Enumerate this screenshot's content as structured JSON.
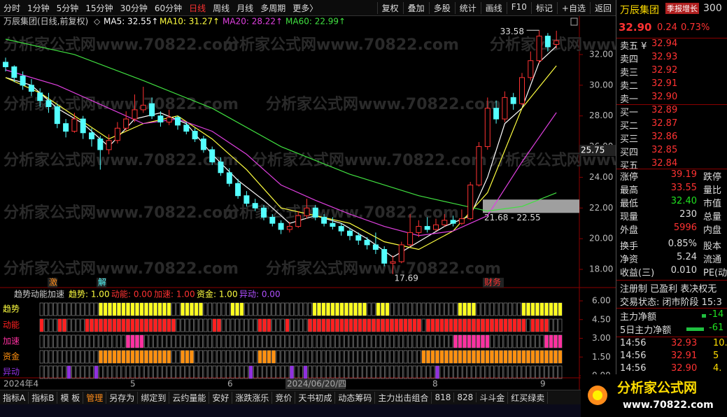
{
  "toolbar": {
    "periods": [
      "分时",
      "1分钟",
      "5分钟",
      "15分钟",
      "30分钟",
      "60分钟",
      "日线",
      "周线",
      "月线",
      "多周期",
      "更多〉"
    ],
    "buttons": [
      "复权",
      "叠加",
      "多股",
      "统计",
      "画线",
      "F10",
      "标记",
      "+自选",
      "返回"
    ]
  },
  "chart": {
    "title": "万辰集团(日线,前复权)",
    "title_mark": "◇",
    "ma": [
      {
        "label": "MA5: 32.55↑",
        "color": "#ffffff",
        "points": [
          [
            0,
            30.5
          ],
          [
            3,
            30.0
          ],
          [
            6,
            28.5
          ],
          [
            9,
            27.5
          ],
          [
            12,
            26.0
          ],
          [
            15,
            27.8
          ],
          [
            18,
            28.2
          ],
          [
            21,
            27.5
          ],
          [
            24,
            25.5
          ],
          [
            27,
            23.8
          ],
          [
            30,
            22.5
          ],
          [
            33,
            21.0
          ],
          [
            36,
            21.5
          ],
          [
            39,
            21.0
          ],
          [
            42,
            20.0
          ],
          [
            45,
            18.8
          ],
          [
            48,
            19.8
          ],
          [
            51,
            20.8
          ],
          [
            54,
            21.5
          ],
          [
            56,
            24.0
          ],
          [
            58,
            27.5
          ],
          [
            60,
            28.5
          ],
          [
            62,
            31.5
          ],
          [
            64,
            32.55
          ]
        ]
      },
      {
        "label": "MA10: 31.27↑",
        "color": "#ffff40",
        "points": [
          [
            0,
            30.5
          ],
          [
            4,
            29.5
          ],
          [
            8,
            28.0
          ],
          [
            12,
            26.5
          ],
          [
            16,
            27.5
          ],
          [
            20,
            28.0
          ],
          [
            24,
            26.5
          ],
          [
            28,
            24.5
          ],
          [
            32,
            22.0
          ],
          [
            36,
            21.5
          ],
          [
            40,
            21.0
          ],
          [
            44,
            19.8
          ],
          [
            48,
            19.3
          ],
          [
            52,
            20.5
          ],
          [
            56,
            23.0
          ],
          [
            60,
            28.5
          ],
          [
            64,
            31.27
          ]
        ]
      },
      {
        "label": "MA20: 28.22↑",
        "color": "#e040e0",
        "points": [
          [
            0,
            31.0
          ],
          [
            6,
            30.0
          ],
          [
            12,
            28.5
          ],
          [
            16,
            27.5
          ],
          [
            20,
            27.8
          ],
          [
            24,
            27.0
          ],
          [
            28,
            25.5
          ],
          [
            32,
            23.5
          ],
          [
            36,
            22.5
          ],
          [
            40,
            21.6
          ],
          [
            44,
            20.8
          ],
          [
            48,
            20.2
          ],
          [
            52,
            20.5
          ],
          [
            56,
            21.5
          ],
          [
            60,
            25.0
          ],
          [
            64,
            28.22
          ]
        ]
      },
      {
        "label": "MA60: 22.99↑",
        "color": "#40e040",
        "points": [
          [
            0,
            33.0
          ],
          [
            8,
            32.0
          ],
          [
            16,
            30.3
          ],
          [
            24,
            28.5
          ],
          [
            32,
            26.0
          ],
          [
            40,
            24.2
          ],
          [
            48,
            22.8
          ],
          [
            52,
            22.3
          ],
          [
            56,
            21.8
          ],
          [
            60,
            22.1
          ],
          [
            64,
            22.99
          ]
        ]
      }
    ],
    "ylim": [
      16.86,
      33.73
    ],
    "yticks": [
      {
        "value": 32,
        "label": "32.00"
      },
      {
        "value": 30,
        "label": "30.00"
      },
      {
        "value": 28,
        "label": "28.00"
      },
      {
        "value": 26,
        "label": "26.00"
      },
      {
        "value": 24,
        "label": "24.00"
      },
      {
        "value": 22,
        "label": "22.00"
      },
      {
        "value": 20,
        "label": "20.00"
      },
      {
        "value": 18,
        "label": "18.00"
      }
    ],
    "cursor_price": {
      "value": 25.75,
      "label": "25.75"
    },
    "high_label": {
      "value": 33.58,
      "label": "33.58"
    },
    "low_label": {
      "value": 17.69,
      "label": "17.69"
    },
    "range_box": {
      "values": [
        21.68,
        22.55
      ],
      "label": "21.68 - 22.55"
    },
    "markers": [
      "激",
      "解",
      "财务"
    ],
    "watermark": "分析家公式网www.70822.com",
    "ohlc": [
      [
        31.5,
        31.8,
        30.9,
        31.2
      ],
      [
        31.2,
        31.3,
        30.2,
        30.5
      ],
      [
        30.6,
        30.9,
        29.7,
        30.0
      ],
      [
        30.0,
        30.4,
        29.3,
        29.6
      ],
      [
        29.5,
        29.8,
        28.6,
        29.0
      ],
      [
        29.0,
        29.5,
        28.2,
        28.6
      ],
      [
        28.6,
        28.8,
        27.2,
        27.5
      ],
      [
        27.5,
        27.8,
        26.6,
        27.0
      ],
      [
        27.0,
        28.2,
        26.9,
        27.8
      ],
      [
        27.8,
        28.0,
        26.5,
        26.9
      ],
      [
        26.9,
        27.2,
        26.0,
        26.5
      ],
      [
        26.5,
        26.7,
        24.5,
        25.8
      ],
      [
        25.8,
        26.8,
        25.5,
        26.4
      ],
      [
        26.4,
        27.6,
        26.2,
        27.2
      ],
      [
        27.2,
        28.3,
        27.0,
        27.8
      ],
      [
        27.8,
        29.4,
        27.6,
        28.4
      ],
      [
        28.4,
        29.9,
        28.2,
        28.7
      ],
      [
        28.8,
        29.2,
        27.8,
        28.0
      ],
      [
        28.0,
        28.3,
        27.3,
        27.6
      ],
      [
        27.6,
        28.4,
        27.4,
        27.9
      ],
      [
        27.9,
        28.0,
        27.1,
        27.4
      ],
      [
        27.4,
        27.6,
        26.8,
        27.0
      ],
      [
        27.0,
        27.2,
        26.3,
        26.5
      ],
      [
        26.5,
        26.7,
        25.6,
        25.8
      ],
      [
        25.8,
        26.0,
        24.8,
        25.0
      ],
      [
        25.0,
        25.3,
        24.1,
        24.3
      ],
      [
        24.3,
        24.6,
        23.4,
        23.6
      ],
      [
        23.6,
        23.9,
        22.6,
        22.8
      ],
      [
        22.8,
        23.1,
        22.1,
        22.3
      ],
      [
        22.3,
        22.6,
        21.8,
        22.0
      ],
      [
        22.0,
        22.2,
        21.2,
        21.4
      ],
      [
        21.4,
        21.6,
        20.8,
        21.0
      ],
      [
        21.0,
        21.2,
        20.3,
        20.6
      ],
      [
        20.6,
        21.1,
        20.4,
        20.8
      ],
      [
        20.8,
        21.8,
        20.7,
        21.5
      ],
      [
        21.5,
        22.6,
        21.3,
        22.0
      ],
      [
        22.0,
        22.2,
        21.2,
        21.4
      ],
      [
        21.4,
        21.6,
        20.8,
        21.0
      ],
      [
        21.0,
        21.4,
        20.6,
        20.8
      ],
      [
        20.8,
        21.0,
        20.2,
        20.5
      ],
      [
        20.5,
        20.7,
        19.9,
        20.2
      ],
      [
        20.2,
        20.4,
        19.6,
        19.9
      ],
      [
        19.9,
        20.1,
        19.3,
        19.6
      ],
      [
        19.6,
        20.4,
        19.0,
        19.3
      ],
      [
        19.3,
        19.5,
        18.2,
        18.4
      ],
      [
        18.4,
        18.9,
        17.69,
        18.5
      ],
      [
        18.5,
        19.8,
        18.4,
        19.6
      ],
      [
        19.6,
        21.6,
        19.5,
        20.4
      ],
      [
        20.4,
        21.2,
        20.1,
        20.8
      ],
      [
        20.8,
        21.4,
        20.4,
        20.6
      ],
      [
        20.6,
        21.3,
        20.5,
        20.9
      ],
      [
        20.9,
        21.6,
        20.8,
        21.2
      ],
      [
        21.2,
        21.5,
        20.8,
        21.0
      ],
      [
        21.0,
        21.9,
        20.9,
        21.3
      ],
      [
        21.3,
        23.7,
        21.2,
        23.5
      ],
      [
        23.5,
        26.3,
        23.4,
        26.0
      ],
      [
        26.0,
        29.2,
        25.8,
        28.5
      ],
      [
        28.5,
        29.0,
        27.5,
        27.8
      ],
      [
        27.8,
        29.6,
        27.6,
        29.2
      ],
      [
        29.2,
        29.5,
        28.4,
        28.8
      ],
      [
        28.8,
        30.8,
        28.7,
        30.5
      ],
      [
        30.5,
        32.2,
        30.3,
        31.6
      ],
      [
        31.6,
        33.58,
        31.4,
        33.2
      ],
      [
        33.2,
        33.4,
        32.2,
        32.5
      ],
      [
        32.66,
        33.55,
        32.4,
        32.9
      ]
    ]
  },
  "indicator": {
    "title": "趋势动能加速",
    "readouts": [
      {
        "label": "趋势: 1.00",
        "color": "#ffff40"
      },
      {
        "label": "动能: 0.00",
        "color": "#ff3232"
      },
      {
        "label": "加速: 1.00",
        "color": "#ff3232"
      },
      {
        "label": "资金: 1.00",
        "color": "#ffff40"
      },
      {
        "label": "异动: 0.00",
        "color": "#b050ff"
      }
    ],
    "ylim": [
      0,
      6
    ],
    "yticks": [
      {
        "value": 6,
        "label": "6.00"
      },
      {
        "value": 4.5,
        "label": "4.50"
      },
      {
        "value": 3,
        "label": "3.00"
      },
      {
        "value": 1.5,
        "label": "1.50"
      },
      {
        "value": 0,
        "label": "0.00"
      }
    ],
    "block_count": 115,
    "rows": [
      {
        "name": "趋势",
        "color": "#ffff20",
        "ranges": [
          [
            13,
            28
          ],
          [
            31,
            35
          ],
          [
            42,
            44
          ],
          [
            60,
            71
          ],
          [
            74,
            76
          ],
          [
            92,
            95
          ],
          [
            106,
            114
          ]
        ]
      },
      {
        "name": "动能",
        "color": "#ff2020",
        "ranges": [
          [
            0,
            0
          ],
          [
            4,
            5
          ],
          [
            10,
            11
          ],
          [
            12,
            29
          ],
          [
            38,
            39
          ],
          [
            48,
            50
          ],
          [
            54,
            54
          ],
          [
            59,
            83
          ],
          [
            85,
            106
          ],
          [
            108,
            111
          ]
        ]
      },
      {
        "name": "加速",
        "color": "#ff30a0",
        "ranges": [
          [
            19,
            22
          ],
          [
            91,
            98
          ],
          [
            111,
            114
          ]
        ]
      },
      {
        "name": "资金",
        "color": "#ff9010",
        "ranges": [
          [
            13,
            28
          ],
          [
            31,
            33
          ],
          [
            48,
            51
          ],
          [
            84,
            114
          ]
        ]
      },
      {
        "name": "异动",
        "color": "#9030e0",
        "ranges": [
          [
            6,
            6
          ],
          [
            12,
            12
          ],
          [
            46,
            46
          ],
          [
            55,
            55
          ],
          [
            58,
            58
          ],
          [
            87,
            87
          ]
        ]
      }
    ]
  },
  "dates": [
    "2024年4",
    "5",
    "6",
    "2024/06/20/四",
    "8",
    "9"
  ],
  "tabs": [
    "指标A",
    "指标B",
    "模 板",
    "管理",
    "另存为",
    "绑定到",
    "云约量能",
    "安好",
    "涨跌涨乐",
    "竞价",
    "天书初成",
    "动态筹码",
    "主力出击组合",
    "818",
    "828",
    "斗斗金",
    "红买绿卖"
  ],
  "quote": {
    "name": "万辰集团",
    "badge": "季报增长",
    "code": "300",
    "price": "32.90",
    "change": "0.24",
    "pct": "0.73%",
    "asks": [
      [
        "卖五 ¥",
        "32.94"
      ],
      [
        "卖四",
        "32.93"
      ],
      [
        "卖三",
        "32.92"
      ],
      [
        "卖二",
        "32.91"
      ],
      [
        "卖一",
        "32.90"
      ]
    ],
    "bids": [
      [
        "买一",
        "32.89"
      ],
      [
        "买二",
        "32.87"
      ],
      [
        "买三",
        "32.86"
      ],
      [
        "买四",
        "32.85"
      ],
      [
        "买五",
        "32.84"
      ]
    ],
    "stats": [
      [
        "涨停",
        "39.19",
        "跌停"
      ],
      [
        "最高",
        "33.55",
        "量比"
      ],
      [
        "最低",
        "32.40",
        "市值"
      ],
      [
        "现量",
        "230",
        "总量"
      ],
      [
        "外盘",
        "5996",
        "内盘"
      ],
      [
        "换手",
        "0.85%",
        "股本"
      ],
      [
        "净资",
        "5.24",
        "流通"
      ],
      [
        "收益(三)",
        "0.010",
        "PE(动"
      ]
    ],
    "tags": "注册制  已盈利  表决权无",
    "status": "交易状态: 闭市阶段  15:3",
    "flows": [
      [
        "主力净额",
        "-14"
      ],
      [
        "5日主力净额",
        "-61"
      ]
    ],
    "trades": [
      [
        "14:56",
        "32.93",
        "10."
      ],
      [
        "14:56",
        "32.91",
        "5"
      ],
      [
        "14:56",
        "32.90",
        "4."
      ]
    ]
  },
  "logo": {
    "name": "分析家公式网",
    "url": "www.70822.com"
  }
}
